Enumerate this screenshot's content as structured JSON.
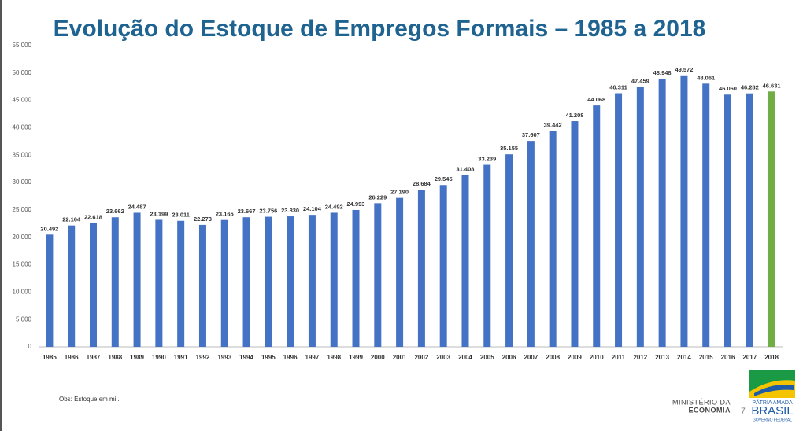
{
  "chart_data": {
    "type": "bar",
    "title": "Evolução do Estoque de Empregos Formais – 1985 a 2018",
    "categories": [
      "1985",
      "1986",
      "1987",
      "1988",
      "1989",
      "1990",
      "1991",
      "1992",
      "1993",
      "1994",
      "1995",
      "1996",
      "1997",
      "1998",
      "1999",
      "2000",
      "2001",
      "2002",
      "2003",
      "2004",
      "2005",
      "2006",
      "2007",
      "2008",
      "2009",
      "2010",
      "2011",
      "2012",
      "2013",
      "2014",
      "2015",
      "2016",
      "2017",
      "2018"
    ],
    "values": [
      20492,
      22164,
      22618,
      23662,
      24487,
      23199,
      23011,
      22273,
      23165,
      23667,
      23756,
      23830,
      24104,
      24492,
      24993,
      26229,
      27190,
      28684,
      29545,
      31408,
      33239,
      35155,
      37607,
      39442,
      41208,
      44068,
      46311,
      47459,
      48948,
      49572,
      48061,
      46060,
      46282,
      46631
    ],
    "value_labels": [
      "20.492",
      "22.164",
      "22.618",
      "23.662",
      "24.487",
      "23.199",
      "23.011",
      "22.273",
      "23.165",
      "23.667",
      "23.756",
      "23.830",
      "24.104",
      "24.492",
      "24.993",
      "26.229",
      "27.190",
      "28.684",
      "29.545",
      "31.408",
      "33.239",
      "35.155",
      "37.607",
      "39.442",
      "41.208",
      "44.068",
      "46.311",
      "47.459",
      "48.948",
      "49.572",
      "48.061",
      "46.060",
      "46.282",
      "46.631"
    ],
    "colors": [
      "#4472c4",
      "#4472c4",
      "#4472c4",
      "#4472c4",
      "#4472c4",
      "#4472c4",
      "#4472c4",
      "#4472c4",
      "#4472c4",
      "#4472c4",
      "#4472c4",
      "#4472c4",
      "#4472c4",
      "#4472c4",
      "#4472c4",
      "#4472c4",
      "#4472c4",
      "#4472c4",
      "#4472c4",
      "#4472c4",
      "#4472c4",
      "#4472c4",
      "#4472c4",
      "#4472c4",
      "#4472c4",
      "#4472c4",
      "#4472c4",
      "#4472c4",
      "#4472c4",
      "#4472c4",
      "#4472c4",
      "#4472c4",
      "#4472c4",
      "#70ad47"
    ],
    "ylim": [
      0,
      55000
    ],
    "yticks": [
      0,
      {
        "value": 5000,
        "label": "5.000"
      },
      {
        "value": 10000,
        "label": "10.000"
      },
      {
        "value": 15000,
        "label": "15.000"
      },
      {
        "value": 20000,
        "label": "20.000"
      },
      {
        "value": 25000,
        "label": "25.000"
      },
      {
        "value": 30000,
        "label": "30.000"
      },
      {
        "value": 35000,
        "label": "35.000"
      },
      {
        "value": 40000,
        "label": "40.000"
      },
      {
        "value": 45000,
        "label": "45.000"
      },
      {
        "value": 50000,
        "label": "50.000"
      },
      {
        "value": 55000,
        "label": "55.000"
      }
    ],
    "grid": false
  },
  "footer": {
    "note": "Obs: Estoque em mil.",
    "ministry_line1": "MINISTÉRIO DA",
    "ministry_line2": "ECONOMIA",
    "page_number": "7",
    "motto": "PÁTRIA AMADA",
    "country": "BRASIL",
    "government": "GOVERNO FEDERAL"
  }
}
